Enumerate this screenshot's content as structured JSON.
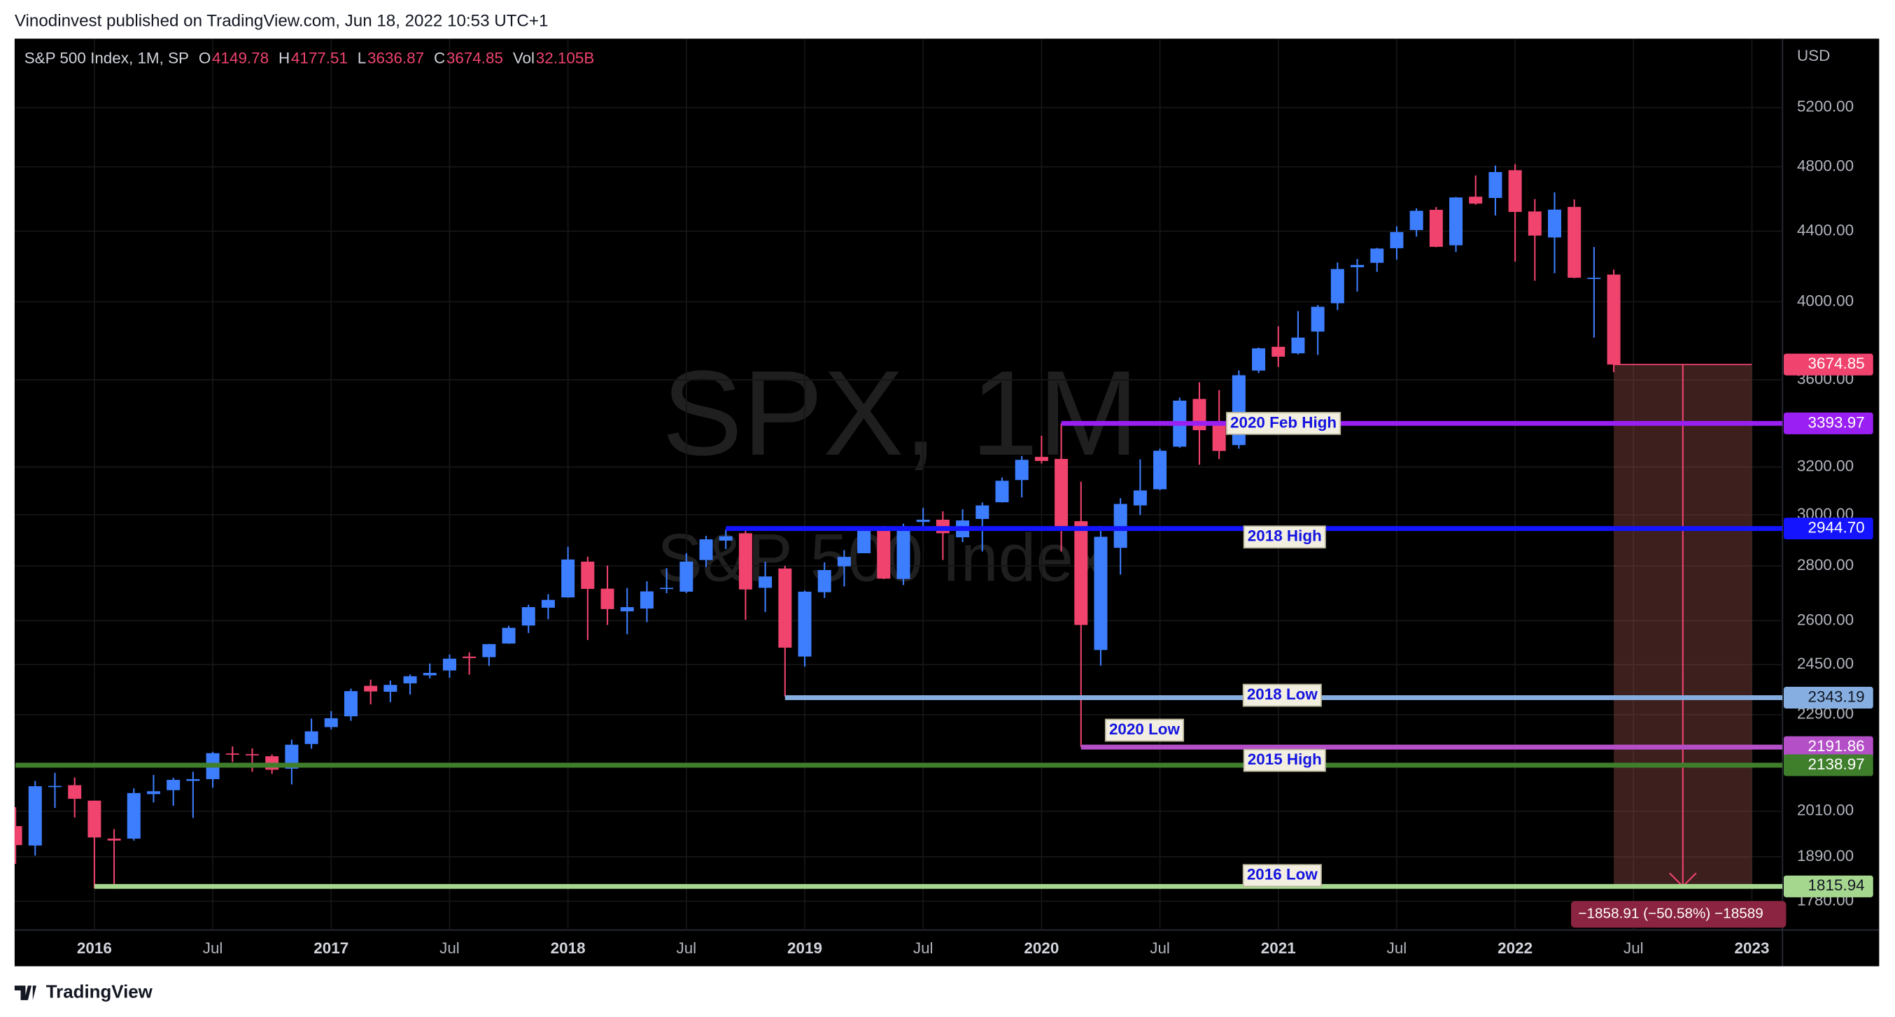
{
  "header": "Vinodinvest published on TradingView.com, Jun 18, 2022 10:53 UTC+1",
  "footer": "TradingView",
  "chart_data": {
    "type": "candlestick",
    "title": "S&P 500 Index, 1M, SP",
    "legend_labels": [
      "O",
      "H",
      "L",
      "C",
      "Vol"
    ],
    "volume": "32.105B",
    "currency": "USD",
    "watermark": [
      "SPX, 1M",
      "S&P 500 Index"
    ],
    "up_color": "#3d7eff",
    "down_color": "#f0436e",
    "log_scale": true,
    "grid": true,
    "x": [
      "2015-09",
      "2015-10",
      "2015-11",
      "2015-12",
      "2016-01",
      "2016-02",
      "2016-03",
      "2016-04",
      "2016-05",
      "2016-06",
      "2016-07",
      "2016-08",
      "2016-09",
      "2016-10",
      "2016-11",
      "2016-12",
      "2017-01",
      "2017-02",
      "2017-03",
      "2017-04",
      "2017-05",
      "2017-06",
      "2017-07",
      "2017-08",
      "2017-09",
      "2017-10",
      "2017-11",
      "2017-12",
      "2018-01",
      "2018-02",
      "2018-03",
      "2018-04",
      "2018-05",
      "2018-06",
      "2018-07",
      "2018-08",
      "2018-09",
      "2018-10",
      "2018-11",
      "2018-12",
      "2019-01",
      "2019-02",
      "2019-03",
      "2019-04",
      "2019-05",
      "2019-06",
      "2019-07",
      "2019-08",
      "2019-09",
      "2019-10",
      "2019-11",
      "2019-12",
      "2020-01",
      "2020-02",
      "2020-03",
      "2020-04",
      "2020-05",
      "2020-06",
      "2020-07",
      "2020-08",
      "2020-09",
      "2020-10",
      "2020-11",
      "2020-12",
      "2021-01",
      "2021-02",
      "2021-03",
      "2021-04",
      "2021-05",
      "2021-06",
      "2021-07",
      "2021-08",
      "2021-09",
      "2021-10",
      "2021-11",
      "2021-12",
      "2022-01",
      "2022-02",
      "2022-03",
      "2022-04",
      "2022-05",
      "2022-06"
    ],
    "open": [
      1970,
      1919,
      2080,
      2082,
      2039,
      1937,
      1937,
      2057,
      2068,
      2094,
      2099,
      2173,
      2171,
      2165,
      2129,
      2201,
      2252,
      2285,
      2381,
      2362,
      2389,
      2415,
      2431,
      2477,
      2475,
      2521,
      2583,
      2646,
      2683,
      2816,
      2715,
      2633,
      2643,
      2718,
      2704,
      2822,
      2897,
      2926,
      2718,
      2790,
      2477,
      2702,
      2798,
      2848,
      2952,
      2751,
      2971,
      2980,
      2910,
      2983,
      3051,
      3144,
      3244,
      3235,
      2974,
      2499,
      2869,
      3038,
      3105,
      3289,
      3508,
      3385,
      3296,
      3645,
      3764,
      3731,
      3842,
      3992,
      4191,
      4216,
      4300,
      4407,
      4529,
      4317,
      4610,
      4602,
      4778,
      4519,
      4363,
      4547,
      4131,
      4149.78
    ],
    "high": [
      2021,
      2094,
      2117,
      2104,
      2039,
      1962,
      2073,
      2111,
      2103,
      2120,
      2178,
      2194,
      2188,
      2170,
      2214,
      2278,
      2301,
      2372,
      2401,
      2398,
      2418,
      2454,
      2484,
      2491,
      2520,
      2582,
      2657,
      2695,
      2873,
      2835,
      2801,
      2717,
      2742,
      2791,
      2848,
      2916,
      2941,
      2940,
      2815,
      2800,
      2708,
      2813,
      2860,
      2949,
      2955,
      2964,
      3028,
      3014,
      3022,
      3050,
      3155,
      3248,
      3338,
      3394,
      3137,
      2955,
      3068,
      3233,
      3280,
      3514,
      3588,
      3550,
      3646,
      3760,
      3870,
      3950,
      3983,
      4218,
      4238,
      4302,
      4429,
      4538,
      4546,
      4608,
      4744,
      4808,
      4818,
      4595,
      4637,
      4593,
      4307,
      4177.51
    ],
    "low": [
      1872,
      1893,
      2019,
      1993,
      1812,
      1810,
      1932,
      2034,
      2025,
      1992,
      2075,
      2148,
      2120,
      2114,
      2084,
      2187,
      2245,
      2271,
      2322,
      2329,
      2353,
      2405,
      2407,
      2417,
      2446,
      2520,
      2557,
      2605,
      2682,
      2533,
      2585,
      2553,
      2595,
      2698,
      2699,
      2796,
      2864,
      2603,
      2631,
      2347,
      2444,
      2681,
      2723,
      2848,
      2750,
      2728,
      2952,
      2822,
      2891,
      2855,
      3050,
      3071,
      3215,
      2855,
      2192,
      2447,
      2767,
      2999,
      3101,
      3284,
      3210,
      3234,
      3280,
      3633,
      3663,
      3725,
      3723,
      3955,
      4056,
      4165,
      4234,
      4368,
      4306,
      4279,
      4560,
      4495,
      4223,
      4115,
      4157,
      4129,
      3811,
      3636.87
    ],
    "close": [
      1920,
      2079,
      2080,
      2044,
      1940,
      1932,
      2060,
      2065,
      2097,
      2099,
      2174,
      2171,
      2168,
      2126,
      2199,
      2239,
      2279,
      2364,
      2363,
      2384,
      2412,
      2423,
      2470,
      2472,
      2519,
      2575,
      2648,
      2674,
      2824,
      2714,
      2641,
      2648,
      2705,
      2718,
      2816,
      2902,
      2914,
      2712,
      2760,
      2507,
      2704,
      2784,
      2834,
      2946,
      2752,
      2942,
      2980,
      2926,
      2977,
      3038,
      3141,
      3231,
      3226,
      2954,
      2585,
      2912,
      3044,
      3100,
      3271,
      3500,
      3363,
      3270,
      3622,
      3756,
      3714,
      3811,
      3973,
      4181,
      4204,
      4298,
      4395,
      4523,
      4308,
      4605,
      4567,
      4766,
      4516,
      4374,
      4530,
      4132,
      4132,
      3674.85
    ],
    "xlim": [
      "2015-09",
      "2023-02"
    ],
    "xticks": [
      {
        "value": "2016-01",
        "label": "2016"
      },
      {
        "value": "2016-07",
        "label": "Jul"
      },
      {
        "value": "2017-01",
        "label": "2017"
      },
      {
        "value": "2017-07",
        "label": "Jul"
      },
      {
        "value": "2018-01",
        "label": "2018"
      },
      {
        "value": "2018-07",
        "label": "Jul"
      },
      {
        "value": "2019-01",
        "label": "2019"
      },
      {
        "value": "2019-07",
        "label": "Jul"
      },
      {
        "value": "2020-01",
        "label": "2020"
      },
      {
        "value": "2020-07",
        "label": "Jul"
      },
      {
        "value": "2021-01",
        "label": "2021"
      },
      {
        "value": "2021-07",
        "label": "Jul"
      },
      {
        "value": "2022-01",
        "label": "2022"
      },
      {
        "value": "2022-07",
        "label": "Jul"
      },
      {
        "value": "2023-01",
        "label": "2023"
      }
    ],
    "ylim": [
      1712,
      5707
    ],
    "yticks": [
      {
        "value": 1780,
        "label": "1780.00"
      },
      {
        "value": 1890,
        "label": "1890.00"
      },
      {
        "value": 2010,
        "label": "2010.00"
      },
      {
        "value": 2290,
        "label": "2290.00"
      },
      {
        "value": 2450,
        "label": "2450.00"
      },
      {
        "value": 2600,
        "label": "2600.00"
      },
      {
        "value": 2800,
        "label": "2800.00"
      },
      {
        "value": 3000,
        "label": "3000.00"
      },
      {
        "value": 3200,
        "label": "3200.00"
      },
      {
        "value": 3600,
        "label": "3600.00"
      },
      {
        "value": 4000,
        "label": "4000.00"
      },
      {
        "value": 4400,
        "label": "4400.00"
      },
      {
        "value": 4800,
        "label": "4800.00"
      },
      {
        "value": 5200,
        "label": "5200.00"
      }
    ],
    "levels": [
      {
        "label": "2020 Feb High",
        "value": 3393.97,
        "start": "2020-02",
        "color": "#9a1ff2"
      },
      {
        "label": "2018 High",
        "value": 2944.7,
        "value_label": "2944.70",
        "start": "2018-09",
        "color": "#1414ff"
      },
      {
        "label": "2018 Low",
        "value": 2343.19,
        "start": "2018-12",
        "color": "#86aee0"
      },
      {
        "label": "2020 Low",
        "value": 2191.86,
        "start": "2020-03",
        "color": "#b44fc8"
      },
      {
        "label": "2015 High",
        "value": 2138.97,
        "start": "2015-09",
        "color": "#3f7f2c"
      },
      {
        "label": "2016 Low",
        "value": 1815.94,
        "start": "2016-01",
        "color": "#a6d78f"
      }
    ],
    "measure": {
      "from": "2022-06",
      "to": "2023-01",
      "top": 3674.85,
      "bottom": 1815.94,
      "label": "−1858.91 (−50.58%) −18589"
    }
  }
}
